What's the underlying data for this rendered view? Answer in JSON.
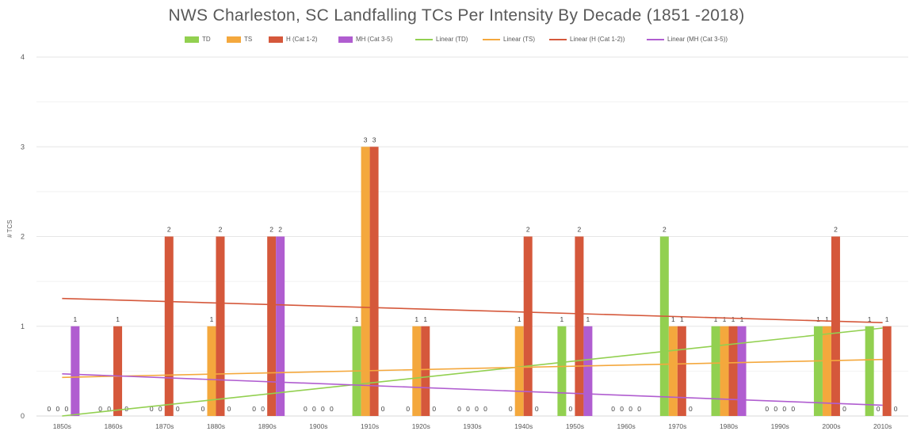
{
  "chart_data": {
    "type": "bar",
    "title": "NWS Charleston, SC Landfalling TCs Per Intensity By Decade (1851 -2018)",
    "ylabel": "# TCS",
    "xlabel": "",
    "ylim": [
      0,
      4
    ],
    "yticks": [
      "0",
      "1",
      "2",
      "3",
      "4"
    ],
    "grid": true,
    "legend_position": "top",
    "categories": [
      "1850s",
      "1860s",
      "1870s",
      "1880s",
      "1890s",
      "1900s",
      "1910s",
      "1920s",
      "1930s",
      "1940s",
      "1950s",
      "1960s",
      "1970s",
      "1980s",
      "1990s",
      "2000s",
      "2010s"
    ],
    "series": [
      {
        "name": "TD",
        "color": "#92D050",
        "values": [
          0,
          0,
          0,
          0,
          0,
          0,
          1,
          0,
          0,
          0,
          1,
          0,
          2,
          1,
          0,
          1,
          1
        ]
      },
      {
        "name": "TS",
        "color": "#F4A83D",
        "values": [
          0,
          0,
          0,
          1,
          0,
          0,
          3,
          1,
          0,
          1,
          0,
          0,
          1,
          1,
          0,
          1,
          0
        ]
      },
      {
        "name": "H (Cat 1-2)",
        "color": "#D5583B",
        "values": [
          0,
          1,
          2,
          2,
          2,
          0,
          3,
          1,
          0,
          2,
          2,
          0,
          1,
          1,
          0,
          2,
          1
        ]
      },
      {
        "name": "MH (Cat 3-5)",
        "color": "#B05DD0",
        "values": [
          1,
          0,
          0,
          0,
          2,
          0,
          0,
          0,
          0,
          0,
          1,
          0,
          0,
          1,
          0,
          0,
          0
        ]
      }
    ],
    "trendlines": [
      {
        "name": "Linear (TD)",
        "color": "#92D050",
        "start": 0.0,
        "end": 0.98
      },
      {
        "name": "Linear (TS)",
        "color": "#F4A83D",
        "start": 0.43,
        "end": 0.63
      },
      {
        "name": "Linear (H (Cat 1-2))",
        "color": "#D5583B",
        "start": 1.31,
        "end": 1.04
      },
      {
        "name": "Linear (MH (Cat 3-5))",
        "color": "#B05DD0",
        "start": 0.47,
        "end": 0.12
      }
    ]
  }
}
